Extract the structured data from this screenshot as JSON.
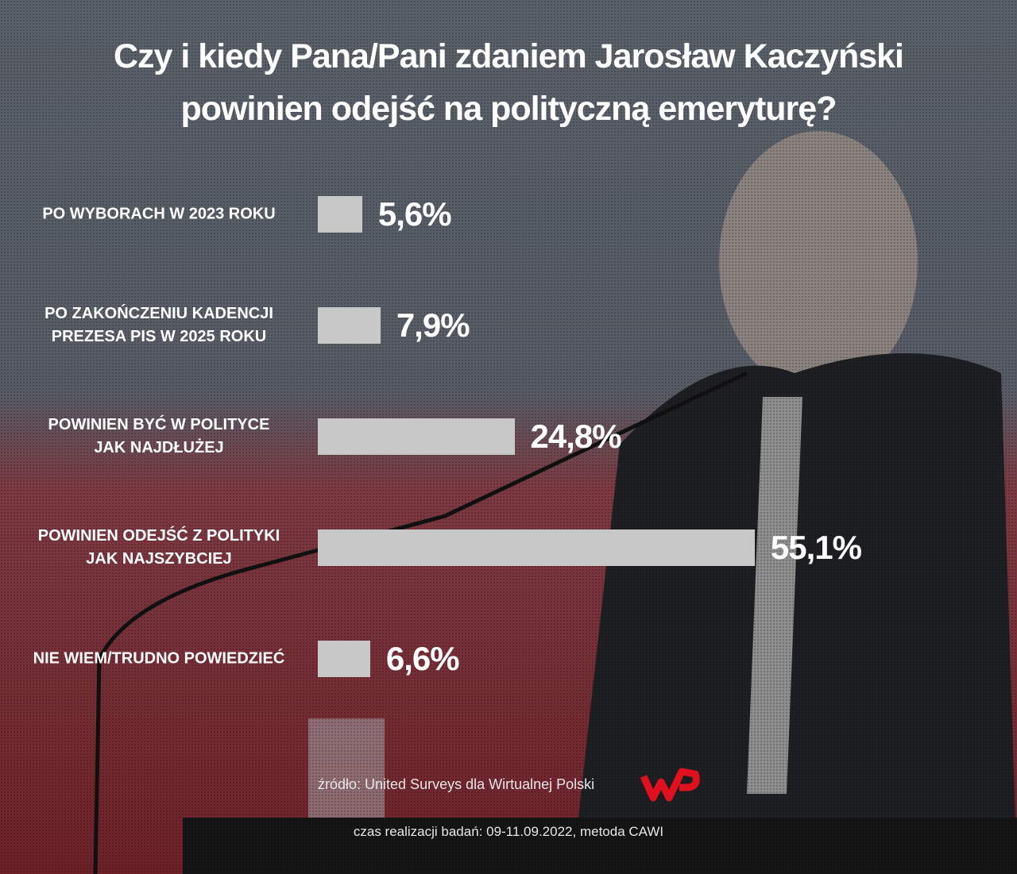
{
  "chart_data": {
    "type": "bar",
    "orientation": "horizontal",
    "title": "Czy i kiedy Pana/Pani zdaniem Jarosław Kaczyński\npowinien odejść na polityczną emeryturę?",
    "categories": [
      "PO WYBORACH W 2023 ROKU",
      "PO ZAKOŃCZENIU KADENCJI\nPREZESA PIS W 2025 ROKU",
      "POWINIEN BYĆ W POLITYCE\nJAK NAJDŁUŻEJ",
      "POWINIEN ODEJŚĆ Z POLITYKI\nJAK NAJSZYBCIEJ",
      "NIE WIEM/TRUDNO POWIEDZIEĆ"
    ],
    "values": [
      5.6,
      7.9,
      24.8,
      55.1,
      6.6
    ],
    "value_labels": [
      "5,6%",
      "7,9%",
      "24,8%",
      "55,1%",
      "6,6%"
    ],
    "color": "#c8c8c8",
    "xlim": [
      0,
      100
    ],
    "source": "źródło: United Surveys dla Wirtualnej Polski",
    "note": "czas realizacji badań: 09-11.09.2022, metoda CAWI"
  }
}
